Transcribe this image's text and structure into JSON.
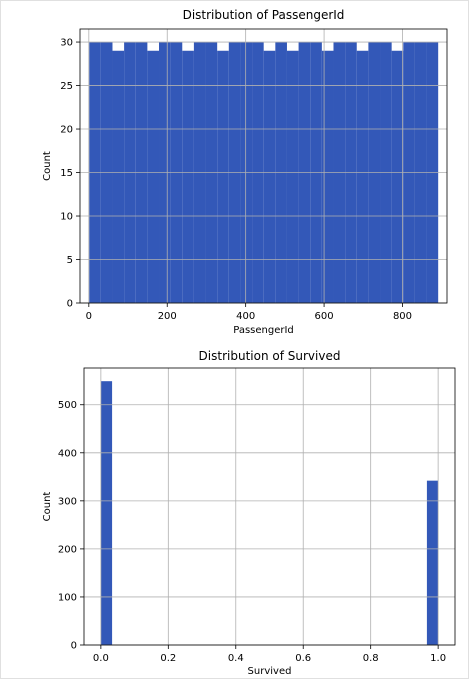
{
  "chart_data": [
    {
      "type": "bar",
      "title": "Distribution of PassengerId",
      "xlabel": "PassengerId",
      "ylabel": "Count",
      "xlim": [
        -22.5,
        913.5
      ],
      "ylim": [
        0,
        31.5
      ],
      "xticks": [
        0,
        200,
        400,
        600,
        800
      ],
      "yticks": [
        0,
        5,
        10,
        15,
        20,
        25,
        30
      ],
      "xtick_labels": [
        "0",
        "200",
        "400",
        "600",
        "800"
      ],
      "ytick_labels": [
        "0",
        "5",
        "10",
        "15",
        "20",
        "25",
        "30"
      ],
      "grid": true,
      "color": "#3358b8",
      "bins": [
        {
          "x0": 1,
          "x1": 30.6667,
          "count": 30
        },
        {
          "x0": 30.6667,
          "x1": 60.3333,
          "count": 30
        },
        {
          "x0": 60.3333,
          "x1": 90,
          "count": 29
        },
        {
          "x0": 90,
          "x1": 119.6667,
          "count": 30
        },
        {
          "x0": 119.6667,
          "x1": 149.3333,
          "count": 30
        },
        {
          "x0": 149.3333,
          "x1": 179,
          "count": 29
        },
        {
          "x0": 179,
          "x1": 208.6667,
          "count": 30
        },
        {
          "x0": 208.6667,
          "x1": 238.3333,
          "count": 30
        },
        {
          "x0": 238.3333,
          "x1": 268,
          "count": 29
        },
        {
          "x0": 268,
          "x1": 297.6667,
          "count": 30
        },
        {
          "x0": 297.6667,
          "x1": 327.3333,
          "count": 30
        },
        {
          "x0": 327.3333,
          "x1": 357,
          "count": 29
        },
        {
          "x0": 357,
          "x1": 386.6667,
          "count": 30
        },
        {
          "x0": 386.6667,
          "x1": 416.3333,
          "count": 30
        },
        {
          "x0": 416.3333,
          "x1": 446,
          "count": 30
        },
        {
          "x0": 446,
          "x1": 475.6667,
          "count": 29
        },
        {
          "x0": 475.6667,
          "x1": 505.3333,
          "count": 30
        },
        {
          "x0": 505.3333,
          "x1": 535,
          "count": 29
        },
        {
          "x0": 535,
          "x1": 564.6667,
          "count": 30
        },
        {
          "x0": 564.6667,
          "x1": 594.3333,
          "count": 30
        },
        {
          "x0": 594.3333,
          "x1": 624,
          "count": 29
        },
        {
          "x0": 624,
          "x1": 653.6667,
          "count": 30
        },
        {
          "x0": 653.6667,
          "x1": 683.3333,
          "count": 30
        },
        {
          "x0": 683.3333,
          "x1": 713,
          "count": 29
        },
        {
          "x0": 713,
          "x1": 742.6667,
          "count": 30
        },
        {
          "x0": 742.6667,
          "x1": 772.3333,
          "count": 30
        },
        {
          "x0": 772.3333,
          "x1": 802,
          "count": 29
        },
        {
          "x0": 802,
          "x1": 831.6667,
          "count": 30
        },
        {
          "x0": 831.6667,
          "x1": 861.3333,
          "count": 30
        },
        {
          "x0": 861.3333,
          "x1": 891,
          "count": 30
        }
      ]
    },
    {
      "type": "bar",
      "title": "Distribution of Survived",
      "xlabel": "Survived",
      "ylabel": "Count",
      "xlim": [
        -0.05,
        1.05
      ],
      "ylim": [
        0,
        576.45
      ],
      "xticks": [
        0.0,
        0.2,
        0.4,
        0.6,
        0.8,
        1.0
      ],
      "yticks": [
        0,
        100,
        200,
        300,
        400,
        500
      ],
      "xtick_labels": [
        "0.0",
        "0.2",
        "0.4",
        "0.6",
        "0.8",
        "1.0"
      ],
      "ytick_labels": [
        "0",
        "100",
        "200",
        "300",
        "400",
        "500"
      ],
      "grid": true,
      "color": "#3358b8",
      "bins": [
        {
          "x0": 0.0,
          "x1": 0.0333,
          "count": 549
        },
        {
          "x0": 0.9667,
          "x1": 1.0,
          "count": 342
        }
      ]
    }
  ]
}
